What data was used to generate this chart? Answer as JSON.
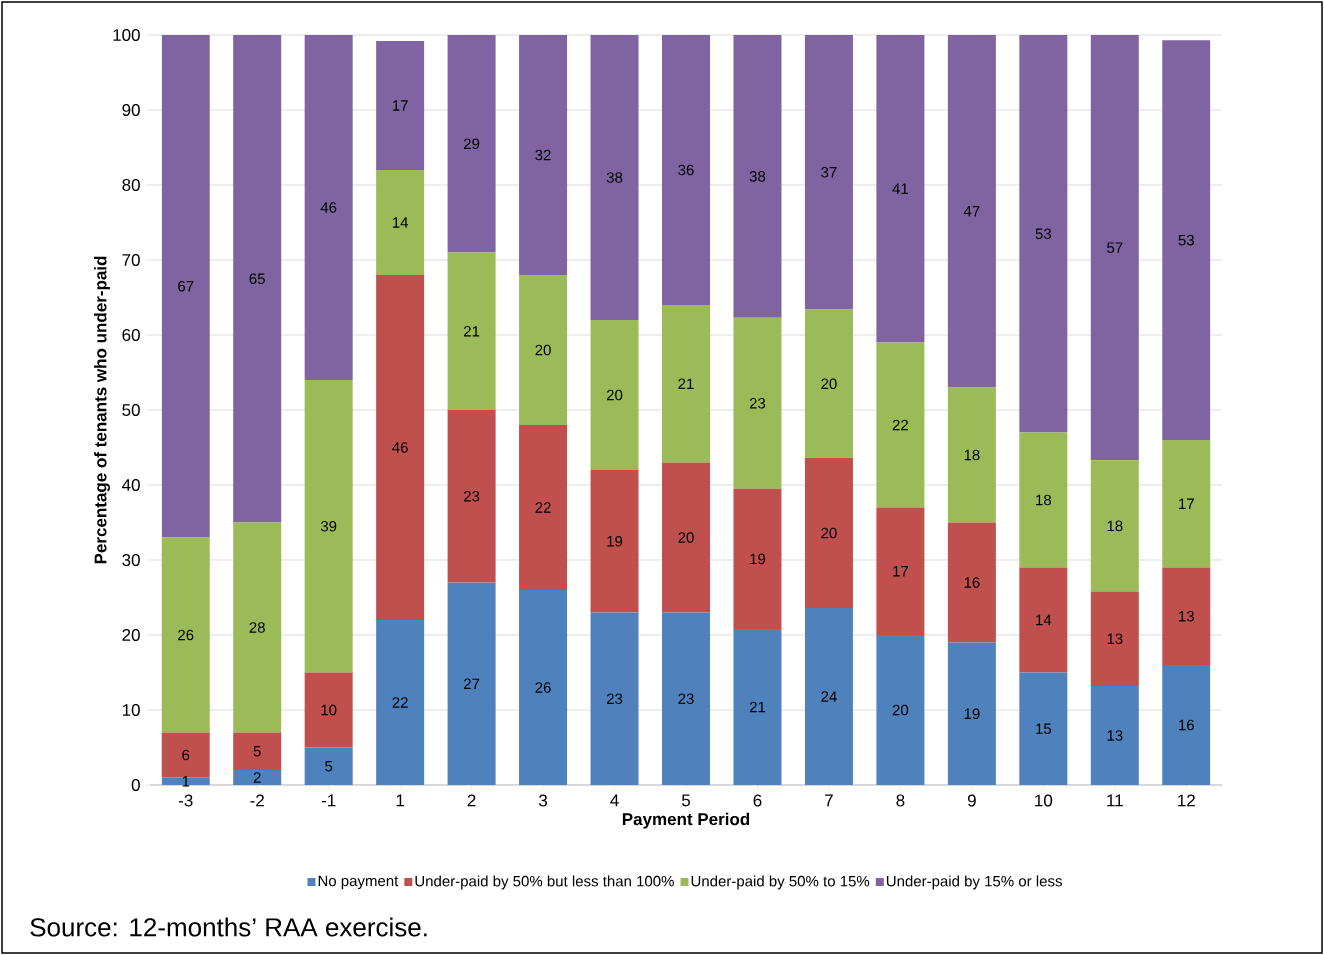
{
  "chart_data": {
    "type": "bar",
    "stacked": true,
    "xlabel": "Payment Period",
    "ylabel": "Percentage of tenants who under-paid",
    "categories": [
      "-3",
      "-2",
      "-1",
      "1",
      "2",
      "3",
      "4",
      "5",
      "6",
      "7",
      "8",
      "9",
      "10",
      "11",
      "12"
    ],
    "series": [
      {
        "name": "No payment",
        "color": "#4f81bd",
        "values": [
          1,
          2,
          5,
          22,
          27,
          26,
          23,
          23,
          20.8,
          23.6,
          20,
          19,
          15,
          13.2,
          16
        ],
        "value_labels": [
          "1",
          "2",
          "5",
          "22",
          "27",
          "26",
          "23",
          "23",
          "21",
          "24",
          "20",
          "19",
          "15",
          "13",
          "16"
        ]
      },
      {
        "name": "Under-paid by 50% but less than 100%",
        "color": "#c0504d",
        "values": [
          6,
          5,
          10,
          46,
          23,
          22,
          19,
          20,
          18.7,
          20,
          17,
          16,
          14,
          12.6,
          13
        ],
        "value_labels": [
          "6",
          "5",
          "10",
          "46",
          "23",
          "22",
          "19",
          "20",
          "19",
          "20",
          "17",
          "16",
          "14",
          "13",
          "13"
        ]
      },
      {
        "name": "Under-paid by 50% to 15%",
        "color": "#9bbb59",
        "values": [
          26,
          28,
          39,
          14,
          21,
          20,
          20,
          21,
          22.8,
          19.8,
          22,
          18,
          18,
          17.5,
          17
        ],
        "value_labels": [
          "26",
          "28",
          "39",
          "14",
          "21",
          "20",
          "20",
          "21",
          "23",
          "20",
          "22",
          "18",
          "18",
          "18",
          "17"
        ]
      },
      {
        "name": "Under-paid by 15% or less",
        "color": "#8064a2",
        "values": [
          67,
          65,
          46,
          17.2,
          29,
          32,
          38,
          36,
          37.7,
          36.6,
          41,
          47,
          53,
          56.7,
          53.3
        ],
        "value_labels": [
          "67",
          "65",
          "46",
          "17",
          "29",
          "32",
          "38",
          "36",
          "38",
          "37",
          "41",
          "47",
          "53",
          "57",
          "53"
        ]
      }
    ],
    "ylim": [
      0,
      100
    ],
    "yticks": [
      0,
      10,
      20,
      30,
      40,
      50,
      60,
      70,
      80,
      90,
      100
    ],
    "grid": "y",
    "legend": "bottom",
    "annotations": [
      "Source: 12-months’ RAA exercise."
    ]
  }
}
